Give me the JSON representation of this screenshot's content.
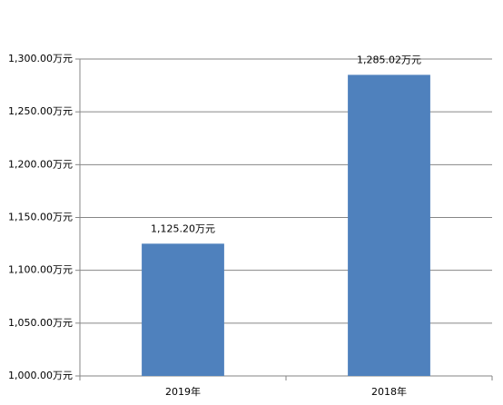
{
  "chart_data": {
    "type": "bar",
    "categories": [
      "2019年",
      "2018年"
    ],
    "values": [
      1125.2,
      1285.02
    ],
    "value_labels": [
      "1,125.20万元",
      "1,285.02万元"
    ],
    "color": "#4f81bd",
    "ylim": [
      1000,
      1300
    ],
    "yticks": [
      {
        "value": 1000,
        "label": "1,000.00万元"
      },
      {
        "value": 1050,
        "label": "1,050.00万元"
      },
      {
        "value": 1100,
        "label": "1,100.00万元"
      },
      {
        "value": 1150,
        "label": "1,150.00万元"
      },
      {
        "value": 1200,
        "label": "1,200.00万元"
      },
      {
        "value": 1250,
        "label": "1,250.00万元"
      },
      {
        "value": 1300,
        "label": "1,300.00万元"
      }
    ],
    "grid": true
  }
}
